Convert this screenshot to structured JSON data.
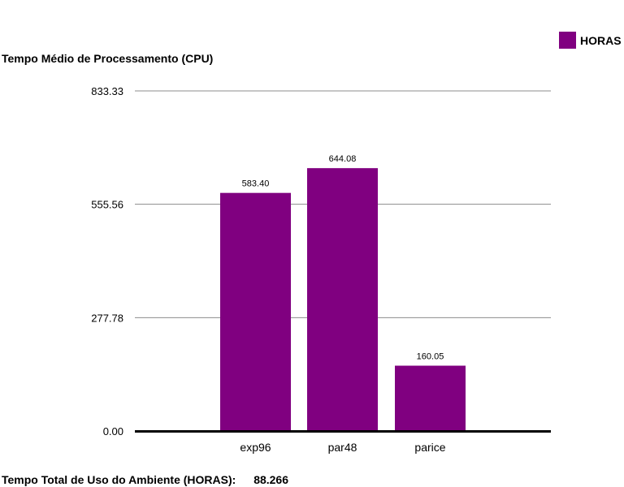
{
  "chart_data": {
    "type": "bar",
    "title": "Tempo Médio de Processamento (CPU)",
    "categories": [
      "exp96",
      "par48",
      "parice"
    ],
    "series": [
      {
        "name": "HORAS",
        "values": [
          583.4,
          644.08,
          160.05
        ]
      }
    ],
    "data_labels": [
      "583.40",
      "644.08",
      "160.05"
    ],
    "y_ticks": [
      "0.00",
      "277.78",
      "555.56",
      "833.33"
    ],
    "ylim": [
      0,
      833.33
    ],
    "grid": true,
    "legend_position": "top-right"
  },
  "colors": {
    "bar": "#800080",
    "grid": "#8c8c8c",
    "axis": "#000000"
  },
  "footer": {
    "label": "Tempo Total de Uso do Ambiente (HORAS):",
    "value": "88.266"
  }
}
